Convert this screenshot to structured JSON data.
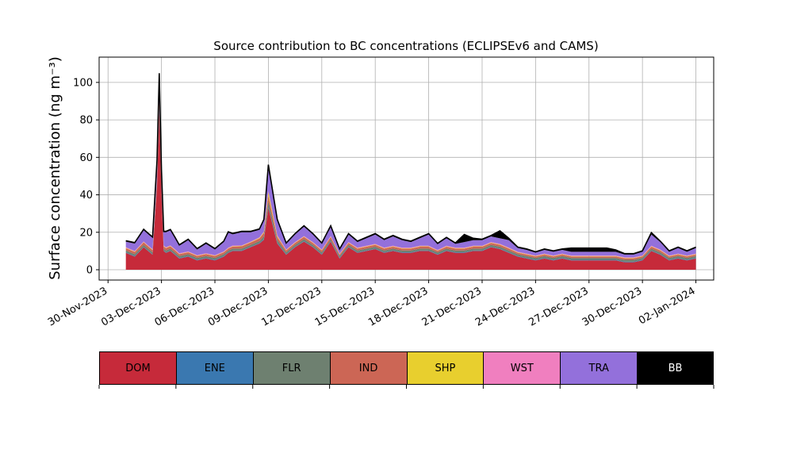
{
  "chart_data": {
    "type": "area",
    "stacked": true,
    "title": "Source contribution to BC concentrations (ECLIPSEv6 and CAMS)",
    "ylabel": "Surface concentration (ng m⁻³)",
    "xlabel": "",
    "x_range": [
      "2023-11-29T12:00",
      "2024-01-03T00:00"
    ],
    "ylim": [
      -5.5,
      113.5
    ],
    "yticks": [
      0,
      20,
      40,
      60,
      80,
      100
    ],
    "xticks": [
      "30-Nov-2023",
      "03-Dec-2023",
      "06-Dec-2023",
      "09-Dec-2023",
      "12-Dec-2023",
      "15-Dec-2023",
      "18-Dec-2023",
      "21-Dec-2023",
      "24-Dec-2023",
      "27-Dec-2023",
      "30-Dec-2023",
      "02-Jan-2024"
    ],
    "grid": true,
    "legend_position": "bottom",
    "x": [
      "2023-12-01T00:00",
      "2023-12-01T12:00",
      "2023-12-02T00:00",
      "2023-12-02T06:00",
      "2023-12-02T12:00",
      "2023-12-02T18:00",
      "2023-12-02T21:00",
      "2023-12-03T00:00",
      "2023-12-03T03:00",
      "2023-12-03T06:00",
      "2023-12-03T12:00",
      "2023-12-03T18:00",
      "2023-12-04T00:00",
      "2023-12-04T12:00",
      "2023-12-05T00:00",
      "2023-12-05T12:00",
      "2023-12-06T00:00",
      "2023-12-06T12:00",
      "2023-12-06T18:00",
      "2023-12-07T00:00",
      "2023-12-07T12:00",
      "2023-12-08T00:00",
      "2023-12-08T12:00",
      "2023-12-08T18:00",
      "2023-12-09T00:00",
      "2023-12-09T12:00",
      "2023-12-10T00:00",
      "2023-12-10T12:00",
      "2023-12-11T00:00",
      "2023-12-11T12:00",
      "2023-12-12T00:00",
      "2023-12-12T12:00",
      "2023-12-13T00:00",
      "2023-12-13T12:00",
      "2023-12-14T00:00",
      "2023-12-14T12:00",
      "2023-12-15T00:00",
      "2023-12-15T12:00",
      "2023-12-16T00:00",
      "2023-12-16T12:00",
      "2023-12-17T00:00",
      "2023-12-17T12:00",
      "2023-12-18T00:00",
      "2023-12-18T12:00",
      "2023-12-19T00:00",
      "2023-12-19T12:00",
      "2023-12-20T00:00",
      "2023-12-20T12:00",
      "2023-12-21T00:00",
      "2023-12-21T12:00",
      "2023-12-22T00:00",
      "2023-12-22T12:00",
      "2023-12-23T00:00",
      "2023-12-23T12:00",
      "2023-12-24T00:00",
      "2023-12-24T12:00",
      "2023-12-25T00:00",
      "2023-12-25T12:00",
      "2023-12-26T00:00",
      "2023-12-26T12:00",
      "2023-12-27T00:00",
      "2023-12-27T12:00",
      "2023-12-28T00:00",
      "2023-12-28T12:00",
      "2023-12-29T00:00",
      "2023-12-29T12:00",
      "2023-12-30T00:00",
      "2023-12-30T12:00",
      "2023-12-31T00:00",
      "2023-12-31T12:00",
      "2024-01-01T00:00",
      "2024-01-01T12:00",
      "2024-01-02T00:00"
    ],
    "series": [
      {
        "name": "DOM",
        "color": "#c62a3a",
        "values": [
          9,
          7,
          12,
          10,
          8,
          45,
          85,
          40,
          10,
          9,
          10,
          8,
          6,
          7,
          5,
          6,
          5,
          7,
          9,
          10,
          10,
          12,
          14,
          16,
          33,
          14,
          8,
          12,
          15,
          12,
          8,
          15,
          6,
          12,
          9,
          10,
          11,
          9,
          10,
          9,
          9,
          10,
          10,
          8,
          10,
          9,
          9,
          10,
          10,
          12,
          11,
          9,
          7,
          6,
          5,
          6,
          5,
          6,
          5,
          5,
          5,
          5,
          5,
          5,
          4,
          4,
          5,
          10,
          8,
          5,
          6,
          5,
          6
        ]
      },
      {
        "name": "ENE",
        "color": "#3a78b0",
        "values": [
          0.3,
          0.3,
          0.3,
          0.3,
          0.3,
          0.5,
          0.6,
          0.4,
          0.3,
          0.3,
          0.3,
          0.3,
          0.3,
          0.3,
          0.3,
          0.3,
          0.3,
          0.3,
          0.3,
          0.3,
          0.3,
          0.3,
          0.3,
          0.4,
          0.5,
          0.4,
          0.3,
          0.3,
          0.3,
          0.3,
          0.3,
          0.3,
          0.3,
          0.3,
          0.3,
          0.3,
          0.3,
          0.3,
          0.3,
          0.3,
          0.3,
          0.3,
          0.3,
          0.3,
          0.3,
          0.3,
          0.3,
          0.3,
          0.3,
          0.3,
          0.3,
          0.3,
          0.3,
          0.3,
          0.3,
          0.3,
          0.3,
          0.3,
          0.3,
          0.3,
          0.3,
          0.3,
          0.3,
          0.3,
          0.3,
          0.3,
          0.3,
          0.3,
          0.3,
          0.3,
          0.3,
          0.3,
          0.3
        ]
      },
      {
        "name": "FLR",
        "color": "#6e8070",
        "values": [
          1.0,
          1.0,
          1.0,
          1.0,
          1.0,
          1.5,
          2.0,
          1.5,
          1.0,
          1.0,
          1.0,
          1.0,
          1.0,
          1.0,
          1.0,
          1.0,
          1.0,
          1.0,
          1.0,
          1.0,
          1.0,
          1.0,
          1.0,
          1.5,
          3.0,
          1.5,
          1.0,
          1.0,
          1.0,
          1.0,
          1.0,
          1.0,
          1.0,
          1.0,
          1.0,
          1.0,
          1.0,
          1.0,
          1.0,
          1.0,
          1.0,
          1.0,
          1.0,
          1.0,
          1.0,
          1.0,
          1.0,
          1.0,
          1.0,
          1.0,
          1.0,
          1.0,
          1.0,
          1.0,
          1.0,
          1.0,
          1.0,
          1.0,
          1.0,
          1.0,
          1.0,
          1.0,
          1.0,
          1.0,
          1.0,
          1.0,
          1.0,
          1.0,
          1.0,
          1.0,
          1.0,
          1.0,
          1.0
        ]
      },
      {
        "name": "IND",
        "color": "#cc6655",
        "values": [
          1.2,
          1.2,
          1.3,
          1.2,
          1.2,
          2.0,
          2.5,
          1.8,
          1.2,
          1.2,
          1.2,
          1.2,
          1.0,
          1.0,
          1.0,
          1.0,
          1.0,
          1.0,
          1.0,
          1.1,
          1.2,
          1.2,
          1.4,
          1.8,
          3.0,
          1.6,
          1.0,
          1.0,
          1.2,
          1.0,
          1.0,
          1.2,
          0.8,
          1.0,
          1.0,
          1.0,
          1.0,
          1.0,
          1.0,
          1.0,
          1.0,
          1.0,
          1.0,
          0.8,
          1.0,
          1.0,
          1.0,
          1.0,
          1.0,
          1.0,
          1.0,
          1.0,
          0.8,
          0.8,
          0.8,
          0.8,
          0.8,
          0.8,
          0.8,
          0.8,
          0.8,
          0.8,
          0.8,
          0.8,
          0.8,
          0.8,
          0.8,
          1.0,
          1.0,
          0.8,
          0.8,
          0.8,
          0.8
        ]
      },
      {
        "name": "SHP",
        "color": "#e8cf2e",
        "values": [
          0.2,
          0.2,
          0.2,
          0.2,
          0.2,
          0.3,
          0.3,
          0.3,
          0.2,
          0.2,
          0.2,
          0.2,
          0.2,
          0.2,
          0.2,
          0.2,
          0.2,
          0.2,
          0.2,
          0.2,
          0.2,
          0.2,
          0.3,
          0.4,
          2.0,
          0.5,
          0.2,
          0.2,
          0.2,
          0.2,
          0.2,
          0.2,
          0.2,
          0.2,
          0.2,
          0.2,
          0.2,
          0.2,
          0.2,
          0.2,
          0.2,
          0.2,
          0.2,
          0.2,
          0.2,
          0.2,
          0.2,
          0.2,
          0.2,
          0.2,
          0.2,
          0.2,
          0.2,
          0.2,
          0.2,
          0.2,
          0.2,
          0.2,
          0.2,
          0.2,
          0.2,
          0.2,
          0.2,
          0.2,
          0.2,
          0.2,
          0.2,
          0.2,
          0.2,
          0.2,
          0.2,
          0.2,
          0.2
        ]
      },
      {
        "name": "WST",
        "color": "#f07fbf",
        "values": [
          0.3,
          0.3,
          0.3,
          0.3,
          0.3,
          0.4,
          0.5,
          0.4,
          0.3,
          0.3,
          0.3,
          0.3,
          0.3,
          0.3,
          0.3,
          0.3,
          0.3,
          0.3,
          0.3,
          0.3,
          0.3,
          0.3,
          0.3,
          0.3,
          0.6,
          0.4,
          0.3,
          0.3,
          0.3,
          0.3,
          0.3,
          0.3,
          0.3,
          0.3,
          0.3,
          0.3,
          0.3,
          0.3,
          0.3,
          0.3,
          0.3,
          0.3,
          0.3,
          0.3,
          0.3,
          0.3,
          0.3,
          0.3,
          0.3,
          0.3,
          0.3,
          0.3,
          0.3,
          0.3,
          0.3,
          0.3,
          0.3,
          0.3,
          0.3,
          0.3,
          0.3,
          0.3,
          0.3,
          0.3,
          0.3,
          0.3,
          0.3,
          0.3,
          0.3,
          0.3,
          0.3,
          0.3,
          0.3
        ]
      },
      {
        "name": "TRA",
        "color": "#9370db",
        "values": [
          3,
          4,
          6,
          6,
          6,
          8,
          12,
          8,
          7,
          8,
          8,
          6,
          4,
          6,
          3,
          5,
          3,
          5,
          8,
          6,
          7,
          5,
          4,
          6,
          12,
          8,
          3,
          4,
          5,
          4,
          3,
          5,
          2,
          4,
          3,
          4,
          5,
          4,
          5,
          4,
          3,
          4,
          6,
          3,
          4,
          2,
          3,
          3,
          3,
          3,
          3,
          4,
          2,
          2,
          1.5,
          2,
          2,
          2,
          2,
          2,
          2,
          2,
          2,
          2,
          1.5,
          1.5,
          2,
          6,
          4,
          2,
          3,
          2,
          3
        ]
      },
      {
        "name": "BB",
        "color": "#000000",
        "values": [
          0.5,
          0.5,
          0.5,
          0.5,
          0.5,
          1.0,
          2.0,
          1.0,
          0.5,
          0.5,
          0.5,
          0.5,
          0.5,
          0.5,
          0.5,
          0.5,
          0.5,
          0.5,
          0.5,
          0.5,
          0.5,
          0.5,
          0.5,
          0.5,
          2.0,
          0.5,
          0.5,
          0.5,
          0.5,
          0.5,
          0.5,
          0.5,
          0.5,
          0.5,
          0.5,
          0.5,
          0.5,
          0.5,
          0.5,
          0.5,
          0.5,
          0.5,
          0.5,
          0.5,
          0.5,
          0.5,
          4.0,
          1.0,
          0.5,
          0.5,
          4.0,
          1.0,
          0.5,
          0.5,
          0.5,
          0.5,
          0.5,
          0.5,
          2.0,
          2.0,
          2.0,
          2.0,
          2.0,
          1.0,
          0.5,
          0.5,
          0.5,
          1.0,
          0.5,
          0.5,
          0.5,
          0.5,
          0.5
        ]
      }
    ],
    "legend": [
      {
        "label": "DOM",
        "color": "#c62a3a",
        "text_color": "#000000"
      },
      {
        "label": "ENE",
        "color": "#3a78b0",
        "text_color": "#000000"
      },
      {
        "label": "FLR",
        "color": "#6e8070",
        "text_color": "#000000"
      },
      {
        "label": "IND",
        "color": "#cc6655",
        "text_color": "#000000"
      },
      {
        "label": "SHP",
        "color": "#e8cf2e",
        "text_color": "#000000"
      },
      {
        "label": "WST",
        "color": "#f07fbf",
        "text_color": "#000000"
      },
      {
        "label": "TRA",
        "color": "#9370db",
        "text_color": "#000000"
      },
      {
        "label": "BB",
        "color": "#000000",
        "text_color": "#ffffff"
      }
    ]
  }
}
